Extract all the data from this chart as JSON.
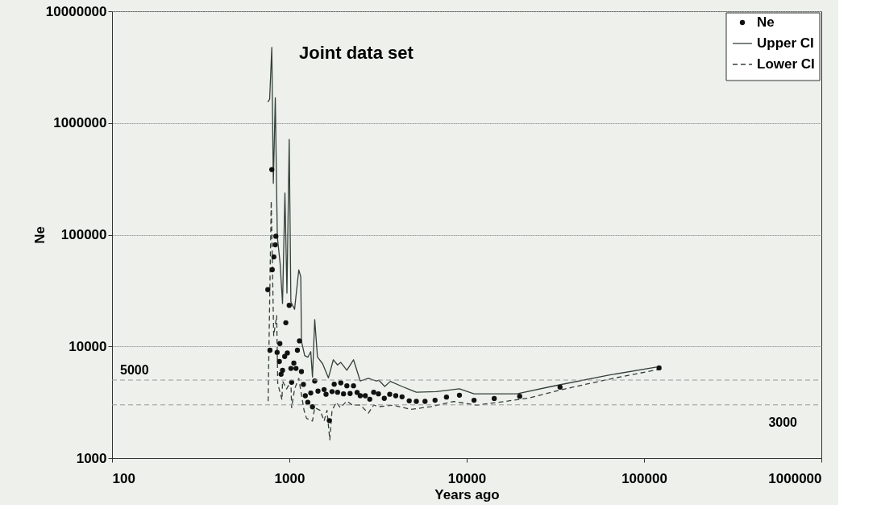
{
  "chart_data": {
    "type": "scatter",
    "title": "Joint data set",
    "xlabel": "Years ago",
    "ylabel": "Ne",
    "log": "xy",
    "xlim": [
      100,
      1000000
    ],
    "ylim": [
      1000,
      10000000
    ],
    "xticks": [
      100,
      1000,
      10000,
      100000,
      1000000
    ],
    "yticks": [
      1000,
      10000,
      100000,
      1000000,
      10000000
    ],
    "grid": "y",
    "legend": "top right",
    "series": [
      {
        "name": "Ne",
        "marker": "circle",
        "color": "#111111",
        "x": [
          796,
          839,
          833,
          818,
          801,
          756,
          998,
          955,
          1140,
          884,
          777,
          853,
          1110,
          974,
          941,
          878,
          1060,
          1020,
          1090,
          915,
          1170,
          898,
          1030,
          1200,
          1390,
          1230,
          1320,
          1270,
          1350,
          1450,
          1570,
          1610,
          1680,
          1740,
          1790,
          1870,
          1950,
          2020,
          2110,
          2200,
          2300,
          2410,
          2510,
          2680,
          2840,
          2990,
          3180,
          3430,
          3680,
          3980,
          4320,
          4740,
          5200,
          5820,
          6630,
          7690,
          9100,
          11000,
          14300,
          19900,
          33600,
          121600
        ],
        "values": [
          383000,
          96800,
          81100,
          63300,
          48600,
          32200,
          23300,
          16300,
          11200,
          10600,
          9240,
          8840,
          9240,
          8730,
          8130,
          7330,
          7090,
          6350,
          6350,
          6110,
          5950,
          5630,
          4770,
          4570,
          4900,
          3620,
          3830,
          3160,
          2880,
          3980,
          4110,
          3730,
          2170,
          3940,
          4590,
          3890,
          4720,
          3760,
          4440,
          3790,
          4440,
          3870,
          3620,
          3620,
          3370,
          3890,
          3760,
          3430,
          3730,
          3620,
          3540,
          3260,
          3220,
          3220,
          3300,
          3520,
          3660,
          3300,
          3420,
          3580,
          4320,
          6420
        ]
      },
      {
        "name": "Upper CI",
        "type": "line",
        "line_style": "solid",
        "color": "#33413a",
        "x": [
          756,
          774,
          796,
          812,
          833,
          855,
          887,
          915,
          944,
          969,
          998,
          1020,
          1070,
          1130,
          1160,
          1170,
          1220,
          1270,
          1320,
          1350,
          1390,
          1440,
          1540,
          1660,
          1770,
          1870,
          1950,
          2110,
          2300,
          2510,
          2790,
          3090,
          3200,
          3450,
          3710,
          4320,
          5200,
          6750,
          9100,
          11000,
          19200,
          30000,
          63300,
          121600
        ],
        "values": [
          1540000,
          1630000,
          4750000,
          288000,
          1680000,
          96800,
          55200,
          24200,
          236000,
          30000,
          713000,
          25000,
          21500,
          48400,
          41900,
          11100,
          8270,
          8000,
          8980,
          5320,
          17400,
          8040,
          7000,
          5230,
          7600,
          6830,
          7200,
          6110,
          7600,
          4900,
          5180,
          4900,
          4980,
          4380,
          4870,
          4380,
          3890,
          3940,
          4170,
          3770,
          3770,
          4380,
          5540,
          6590
        ]
      },
      {
        "name": "Lower CI",
        "type": "line",
        "line_style": "dashed",
        "color": "#33413a",
        "x": [
          759,
          790,
          816,
          848,
          860,
          909,
          915,
          964,
          1020,
          1030,
          1070,
          1130,
          1210,
          1250,
          1350,
          1390,
          1490,
          1570,
          1630,
          1690,
          1740,
          1840,
          1940,
          2110,
          2260,
          2510,
          2790,
          2990,
          3200,
          3860,
          4830,
          6270,
          8450,
          11400,
          16500,
          22300,
          34900,
          68200,
          121600
        ],
        "values": [
          3230,
          200000,
          12500,
          18900,
          4640,
          3330,
          4900,
          4160,
          4900,
          2830,
          4160,
          5180,
          2680,
          2270,
          2150,
          2830,
          2680,
          2150,
          2680,
          1460,
          2680,
          3160,
          2830,
          3240,
          2990,
          2990,
          2530,
          2990,
          2890,
          2980,
          2730,
          2890,
          3220,
          2980,
          3220,
          3450,
          4130,
          5210,
          6230
        ]
      }
    ],
    "ref_lines": [
      {
        "axis": "y",
        "value": 5000,
        "label": "5000",
        "color": "#999999",
        "line_style": "dashed"
      },
      {
        "axis": "y",
        "value": 3000,
        "label": "3000",
        "color": "#999999",
        "line_style": "dashed"
      }
    ]
  }
}
